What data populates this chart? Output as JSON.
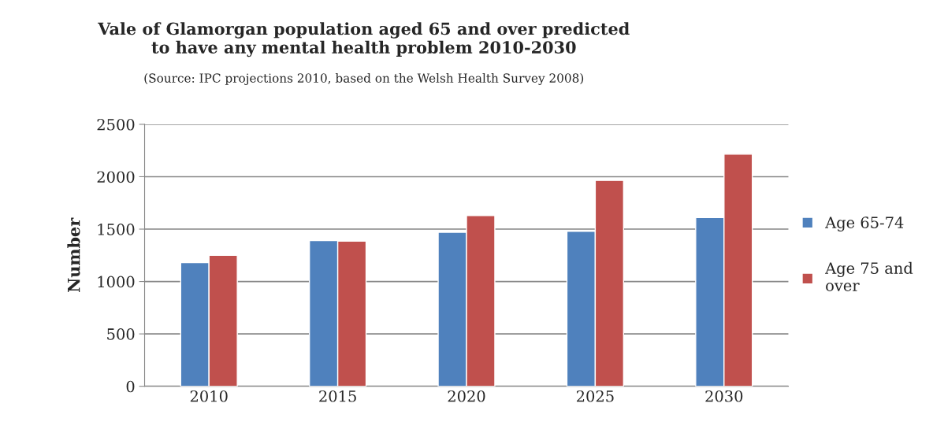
{
  "chart_data": {
    "type": "bar",
    "title": "Vale of Glamorgan population aged 65 and over predicted\nto have any mental health problem 2010-2030",
    "subtitle": "(Source: IPC projections 2010, based on the Welsh Health Survey 2008)",
    "ylabel": "Number",
    "categories": [
      "2010",
      "2015",
      "2020",
      "2025",
      "2030"
    ],
    "series": [
      {
        "name": "Age 65-74",
        "color": "#4f81bd",
        "values": [
          1180,
          1390,
          1470,
          1480,
          1610
        ]
      },
      {
        "name": "Age 75 and\nover",
        "color": "#c0504d",
        "values": [
          1250,
          1385,
          1630,
          1965,
          2215
        ]
      }
    ],
    "ylim": [
      0,
      2500
    ],
    "yticks": [
      0,
      500,
      1000,
      1500,
      2000,
      2500
    ],
    "grid": "y",
    "legend": "right"
  }
}
